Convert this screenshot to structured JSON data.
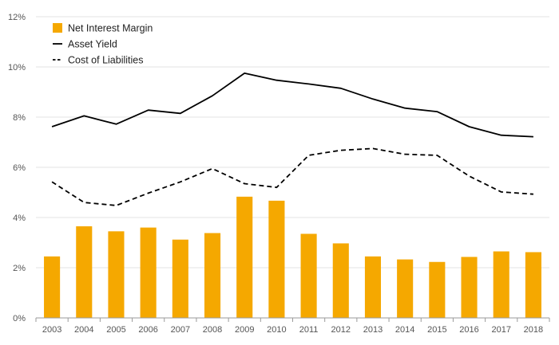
{
  "chart_data": {
    "type": "bar",
    "categories": [
      "2003",
      "2004",
      "2005",
      "2006",
      "2007",
      "2008",
      "2009",
      "2010",
      "2011",
      "2012",
      "2013",
      "2014",
      "2015",
      "2016",
      "2017",
      "2018"
    ],
    "ylim": [
      0,
      12
    ],
    "yticks": [
      0,
      2,
      4,
      6,
      8,
      10,
      12
    ],
    "ytick_labels": [
      "0%",
      "2%",
      "4%",
      "6%",
      "8%",
      "10%",
      "12%"
    ],
    "grid": true,
    "legend_position": "top-left",
    "series": [
      {
        "name": "Net Interest Margin",
        "kind": "bar",
        "color": "#f5a800",
        "values": [
          2.45,
          3.65,
          3.45,
          3.6,
          3.12,
          3.38,
          4.83,
          4.67,
          3.35,
          2.97,
          2.45,
          2.33,
          2.23,
          2.43,
          2.65,
          2.62
        ]
      },
      {
        "name": "Asset Yield",
        "kind": "line",
        "style": "solid",
        "color": "#000000",
        "values": [
          7.62,
          8.05,
          7.72,
          8.28,
          8.15,
          8.85,
          9.75,
          9.47,
          9.32,
          9.15,
          8.72,
          8.36,
          8.22,
          7.62,
          7.28,
          7.22
        ]
      },
      {
        "name": "Cost of Liabilities",
        "kind": "line",
        "style": "dashed",
        "color": "#000000",
        "values": [
          5.42,
          4.6,
          4.48,
          4.97,
          5.42,
          5.95,
          5.35,
          5.2,
          6.48,
          6.68,
          6.75,
          6.52,
          6.48,
          5.65,
          5.02,
          4.93
        ]
      }
    ]
  }
}
